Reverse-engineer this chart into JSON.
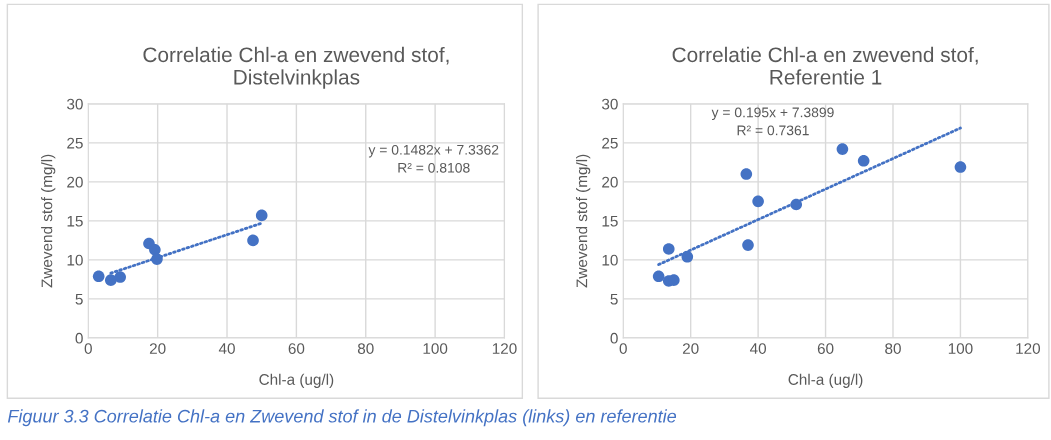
{
  "chart_data": [
    {
      "type": "scatter",
      "title": "Correlatie Chl-a en zwevend stof,\nDistelvinkplas",
      "xlabel": "Chl-a (ug/l)",
      "ylabel": "Zwevend stof (mg/l)",
      "xlim": [
        0,
        120
      ],
      "xticks": [
        0,
        20,
        40,
        60,
        80,
        100,
        120
      ],
      "ylim": [
        0,
        30
      ],
      "yticks": [
        0,
        5,
        10,
        15,
        20,
        25,
        30
      ],
      "grid": true,
      "legend": false,
      "series": [
        {
          "marker": "circle",
          "color": "#4472c4",
          "x": [
            3,
            6.5,
            9.2,
            17.5,
            19.2,
            19.8,
            47.5,
            50
          ],
          "values": [
            7.9,
            7.4,
            7.8,
            12.1,
            11.3,
            10.1,
            12.5,
            15.7
          ]
        },
        {
          "type": "line",
          "color": "#4472c4",
          "line_style": "dotted",
          "marker": "none",
          "x": [
            6.5,
            50
          ],
          "values": [
            8.3,
            14.7
          ]
        }
      ],
      "annotations": [
        "y = 0.1482x + 7.3362\nR² = 0.8108",
        "Figuur 3.3 Correlatie Chl-a en Zwevend stof in de Distelvinkplas (links) en referentie"
      ]
    },
    {
      "type": "scatter",
      "title": "Correlatie Chl-a en zwevend stof,\nReferentie 1",
      "xlabel": "Chl-a (ug/l)",
      "ylabel": "Zwevend stof (mg/l)",
      "xlim": [
        0,
        120
      ],
      "xticks": [
        0,
        20,
        40,
        60,
        80,
        100,
        120
      ],
      "ylim": [
        0,
        30
      ],
      "yticks": [
        0,
        5,
        10,
        15,
        20,
        25,
        30
      ],
      "grid": true,
      "legend": false,
      "series": [
        {
          "marker": "circle",
          "color": "#4472c4",
          "x": [
            10.5,
            13.5,
            13.5,
            15,
            19,
            36.5,
            37,
            40,
            51.3,
            65,
            71.3,
            100
          ],
          "values": [
            7.9,
            11.4,
            7.3,
            7.4,
            10.4,
            21,
            11.9,
            17.5,
            17.1,
            24.2,
            22.7,
            21.9
          ]
        },
        {
          "type": "line",
          "color": "#4472c4",
          "line_style": "dotted",
          "marker": "none",
          "x": [
            10.5,
            100
          ],
          "values": [
            9.4,
            26.9
          ]
        }
      ],
      "annotations": [
        "y = 0.195x + 7.3899\nR² = 0.7361"
      ]
    }
  ]
}
